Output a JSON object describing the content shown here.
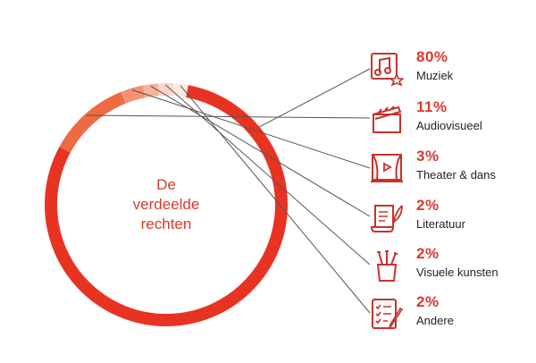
{
  "chart_data": {
    "type": "pie",
    "title_lines": [
      "De",
      "verdeelde",
      "rechten"
    ],
    "slices": [
      {
        "percent_label": "80%",
        "label": "Muziek",
        "value": 80,
        "color": "#e83323",
        "icon": "music-note-icon"
      },
      {
        "percent_label": "11%",
        "label": "Audiovisueel",
        "value": 11,
        "color": "#ee6a43",
        "icon": "clapperboard-icon"
      },
      {
        "percent_label": "3%",
        "label": "Theater & dans",
        "value": 3,
        "color": "#f39173",
        "icon": "theater-stage-icon"
      },
      {
        "percent_label": "2%",
        "label": "Literatuur",
        "value": 2,
        "color": "#f5b49c",
        "icon": "scroll-quill-icon"
      },
      {
        "percent_label": "2%",
        "label": "Visuele kunsten",
        "value": 2,
        "color": "#fad5c6",
        "icon": "brush-pot-icon"
      },
      {
        "percent_label": "2%",
        "label": "Andere",
        "value": 2,
        "color": "#fce9e1",
        "icon": "checklist-pen-icon"
      }
    ]
  },
  "colors": {
    "accent": "#d93a2b",
    "text": "#222222",
    "leader": "#555555"
  }
}
